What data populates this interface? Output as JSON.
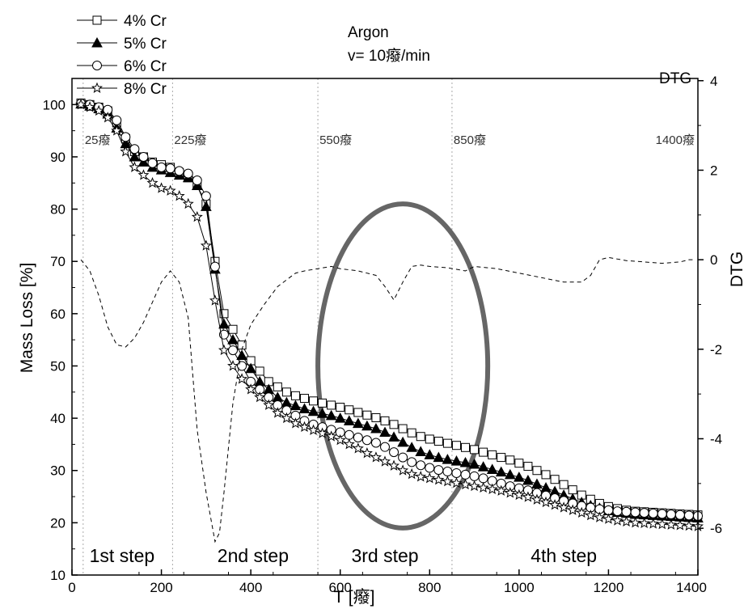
{
  "chart_data": {
    "type": "line",
    "xlabel": "T [癈]",
    "ylabel": "Mass Loss [%]",
    "y2label": "DTG",
    "xlim": [
      0,
      1400
    ],
    "ylim": [
      10,
      105
    ],
    "y2lim": [
      -7.045,
      4.05
    ],
    "xticks": [
      "0",
      "200",
      "400",
      "600",
      "800",
      "1000",
      "1200",
      "1400"
    ],
    "yticks": [
      "10",
      "20",
      "30",
      "40",
      "50",
      "60",
      "70",
      "80",
      "90",
      "100"
    ],
    "y2ticks": [
      "-6",
      "-4",
      "-2",
      "0",
      "2",
      "4"
    ],
    "annotations": {
      "gas": "Argon",
      "rate": "v= 10癈/min",
      "dtg_legend": "DTG"
    },
    "region_boundaries": [
      {
        "x": 25,
        "label": "25癈"
      },
      {
        "x": 225,
        "label": "225癈"
      },
      {
        "x": 550,
        "label": "550癈"
      },
      {
        "x": 850,
        "label": "850癈"
      },
      {
        "x": 1400,
        "label": "1400癈"
      }
    ],
    "steps": [
      {
        "label": "1st step",
        "x_center": 112
      },
      {
        "label": "2nd step",
        "x_center": 405
      },
      {
        "label": "3rd step",
        "x_center": 700
      },
      {
        "label": "4th step",
        "x_center": 1100
      }
    ],
    "highlight_ellipse": {
      "x_center": 740,
      "y_center": 50,
      "x_radius": 190,
      "y_radius": 31
    },
    "series": [
      {
        "name": "4% Cr",
        "marker": "square-open",
        "x": [
          20,
          40,
          60,
          80,
          100,
          120,
          140,
          160,
          180,
          200,
          220,
          240,
          260,
          280,
          300,
          320,
          340,
          360,
          380,
          400,
          420,
          440,
          460,
          480,
          500,
          520,
          540,
          560,
          580,
          600,
          620,
          640,
          660,
          680,
          700,
          720,
          740,
          760,
          780,
          800,
          820,
          840,
          860,
          880,
          900,
          920,
          940,
          960,
          980,
          1000,
          1020,
          1040,
          1060,
          1080,
          1100,
          1120,
          1140,
          1160,
          1180,
          1200,
          1220,
          1240,
          1260,
          1280,
          1300,
          1320,
          1340,
          1360,
          1380,
          1400
        ],
        "y": [
          100.3,
          100,
          99.5,
          98.8,
          96.5,
          93.5,
          91,
          90,
          89,
          88.5,
          88,
          87,
          86,
          84.5,
          81,
          70,
          60,
          57,
          54,
          51,
          49,
          47,
          46,
          45,
          44.3,
          43.8,
          43.3,
          42.9,
          42.5,
          42.1,
          41.6,
          41.1,
          40.6,
          40.1,
          39.5,
          38.8,
          38,
          37.2,
          36.5,
          36,
          35.6,
          35.2,
          34.8,
          34.4,
          34,
          33.5,
          33,
          32.5,
          32,
          31.4,
          30.8,
          30,
          29.2,
          28.3,
          27.3,
          26.3,
          25.3,
          24.5,
          23.7,
          23.1,
          22.7,
          22.4,
          22.2,
          22.1,
          22,
          21.9,
          21.8,
          21.7,
          21.6,
          21.5
        ]
      },
      {
        "name": "5% Cr",
        "marker": "triangle-filled",
        "x": [
          20,
          40,
          60,
          80,
          100,
          120,
          140,
          160,
          180,
          200,
          220,
          240,
          260,
          280,
          300,
          320,
          340,
          360,
          380,
          400,
          420,
          440,
          460,
          480,
          500,
          520,
          540,
          560,
          580,
          600,
          620,
          640,
          660,
          680,
          700,
          720,
          740,
          760,
          780,
          800,
          820,
          840,
          860,
          880,
          900,
          920,
          940,
          960,
          980,
          1000,
          1020,
          1040,
          1060,
          1080,
          1100,
          1120,
          1140,
          1160,
          1180,
          1200,
          1220,
          1240,
          1260,
          1280,
          1300,
          1320,
          1340,
          1360,
          1380,
          1400
        ],
        "y": [
          100.1,
          99.7,
          99.2,
          98.2,
          95.5,
          92.5,
          90,
          89,
          88,
          87.5,
          87,
          86.5,
          86,
          84.5,
          80.5,
          68.5,
          58,
          55,
          52,
          49.5,
          47,
          45.5,
          44,
          43,
          42.4,
          41.8,
          41.3,
          40.9,
          40.5,
          40,
          39.5,
          39,
          38.5,
          38,
          37.3,
          36.4,
          35.4,
          34.4,
          33.6,
          33,
          32.5,
          32.1,
          31.8,
          31.5,
          31.2,
          30.7,
          30.2,
          29.7,
          29.2,
          28.7,
          28.1,
          27.4,
          26.7,
          26,
          25.3,
          24.6,
          23.9,
          23.3,
          22.8,
          22.3,
          22,
          21.8,
          21.6,
          21.5,
          21.4,
          21.3,
          21.2,
          21.1,
          21,
          20.9
        ]
      },
      {
        "name": "6% Cr",
        "marker": "circle-open",
        "x": [
          20,
          40,
          60,
          80,
          100,
          120,
          140,
          160,
          180,
          200,
          220,
          240,
          260,
          280,
          300,
          320,
          340,
          360,
          380,
          400,
          420,
          440,
          460,
          480,
          500,
          520,
          540,
          560,
          580,
          600,
          620,
          640,
          660,
          680,
          700,
          720,
          740,
          760,
          780,
          800,
          820,
          840,
          860,
          880,
          900,
          920,
          940,
          960,
          980,
          1000,
          1020,
          1040,
          1060,
          1080,
          1100,
          1120,
          1140,
          1160,
          1180,
          1200,
          1220,
          1240,
          1260,
          1280,
          1300,
          1320,
          1340,
          1360,
          1380,
          1400
        ],
        "y": [
          100.2,
          100,
          99.5,
          99,
          97,
          93.8,
          91.5,
          90,
          88.8,
          88,
          87.8,
          87.3,
          86.8,
          85.5,
          82.5,
          69,
          56,
          53,
          50,
          47,
          45.5,
          44,
          42.5,
          41.5,
          40.5,
          39.5,
          38.8,
          38.3,
          37.8,
          37.3,
          36.8,
          36.3,
          35.8,
          35.3,
          34.5,
          33.5,
          32.5,
          31.6,
          31,
          30.5,
          30.1,
          29.8,
          29.5,
          29.2,
          28.9,
          28.5,
          28,
          27.5,
          27,
          26.6,
          26.2,
          25.7,
          25.2,
          24.7,
          24.2,
          23.7,
          23.2,
          22.9,
          22.6,
          22.4,
          22.2,
          22.1,
          22,
          21.9,
          21.8,
          21.7,
          21.6,
          21.5,
          21.4,
          21.3
        ]
      },
      {
        "name": "8% Cr",
        "marker": "star-open",
        "x": [
          20,
          40,
          60,
          80,
          100,
          120,
          140,
          160,
          180,
          200,
          220,
          240,
          260,
          280,
          300,
          320,
          340,
          360,
          380,
          400,
          420,
          440,
          460,
          480,
          500,
          520,
          540,
          560,
          580,
          600,
          620,
          640,
          660,
          680,
          700,
          720,
          740,
          760,
          780,
          800,
          820,
          840,
          860,
          880,
          900,
          920,
          940,
          960,
          980,
          1000,
          1020,
          1040,
          1060,
          1080,
          1100,
          1120,
          1140,
          1160,
          1180,
          1200,
          1220,
          1240,
          1260,
          1280,
          1300,
          1320,
          1340,
          1360,
          1380,
          1400
        ],
        "y": [
          100,
          99.5,
          98.8,
          97.5,
          95,
          91,
          88,
          86.5,
          85,
          84,
          83.5,
          82.5,
          81,
          78.5,
          73,
          62.5,
          53,
          50,
          47.5,
          45.5,
          44,
          42.5,
          41,
          40,
          39,
          38.3,
          37.7,
          37.1,
          36.5,
          35.8,
          35,
          34.2,
          33.3,
          32.5,
          31.7,
          30.9,
          30,
          29.3,
          28.8,
          28.5,
          28.2,
          27.9,
          27.6,
          27.3,
          27,
          26.7,
          26.4,
          26.1,
          25.7,
          25.3,
          24.9,
          24.4,
          23.9,
          23.4,
          22.9,
          22.4,
          21.9,
          21.4,
          21,
          20.7,
          20.4,
          20.2,
          20,
          19.9,
          19.8,
          19.7,
          19.6,
          19.5,
          19.4,
          19.3
        ]
      },
      {
        "name": "DTG",
        "axis": "right",
        "style": "dashed",
        "x": [
          20,
          40,
          60,
          80,
          100,
          120,
          140,
          160,
          180,
          200,
          220,
          240,
          260,
          280,
          300,
          320,
          330,
          340,
          360,
          380,
          400,
          430,
          460,
          500,
          520,
          550,
          580,
          600,
          640,
          680,
          700,
          720,
          740,
          760,
          780,
          800,
          840,
          880,
          900,
          950,
          1000,
          1050,
          1100,
          1140,
          1160,
          1180,
          1200,
          1240,
          1280,
          1320,
          1360,
          1380,
          1395
        ],
        "y": [
          0,
          -0.25,
          -0.8,
          -1.5,
          -1.9,
          -1.95,
          -1.75,
          -1.4,
          -0.95,
          -0.5,
          -0.25,
          -0.5,
          -1.3,
          -3.8,
          -5.2,
          -6.3,
          -6.1,
          -5.2,
          -3.2,
          -2,
          -1.45,
          -1,
          -0.6,
          -0.3,
          -0.25,
          -0.2,
          -0.15,
          -0.2,
          -0.25,
          -0.35,
          -0.6,
          -0.9,
          -0.5,
          -0.15,
          -0.12,
          -0.15,
          -0.18,
          -0.25,
          -0.15,
          -0.2,
          -0.3,
          -0.4,
          -0.5,
          -0.5,
          -0.35,
          0,
          0.05,
          -0.02,
          -0.05,
          -0.08,
          -0.05,
          0,
          0
        ]
      }
    ]
  }
}
